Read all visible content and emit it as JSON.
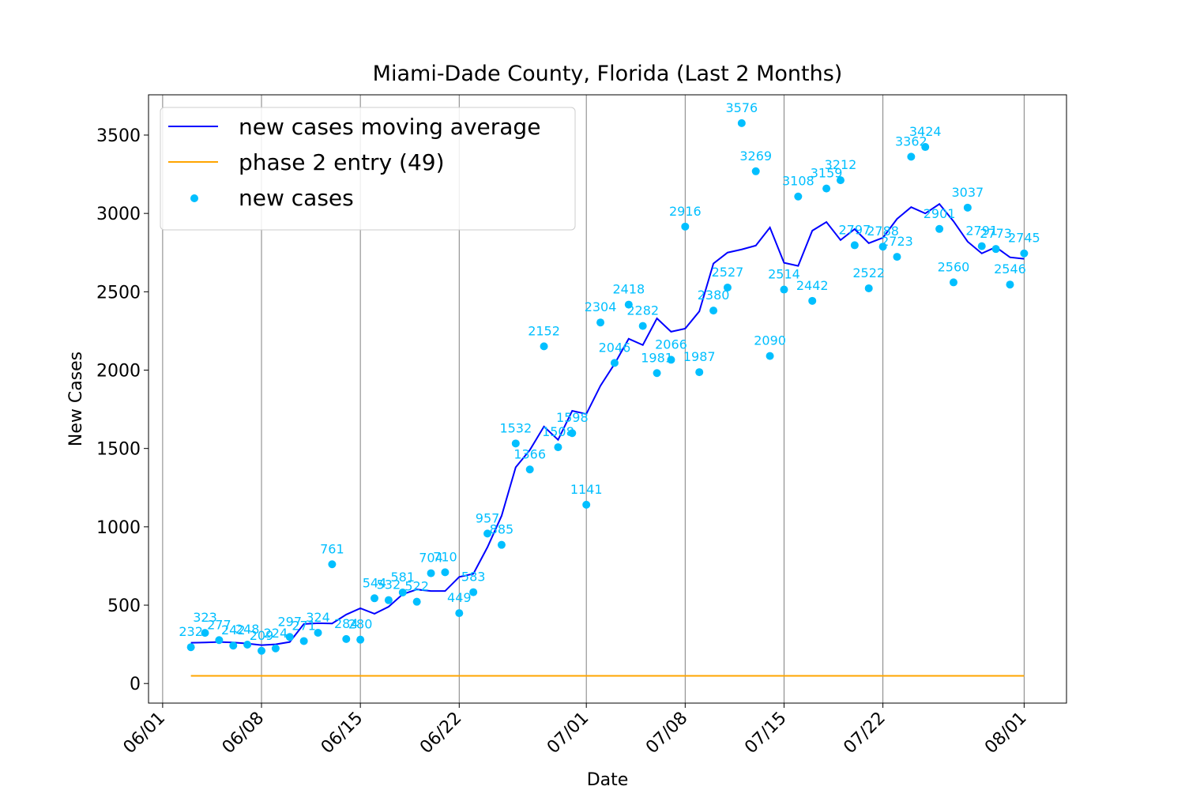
{
  "chart_data": {
    "type": "line",
    "title": "Miami-Dade County, Florida (Last 2 Months)",
    "x_label": "Date",
    "y_label": "New Cases",
    "x": [
      "06/03",
      "06/04",
      "06/05",
      "06/06",
      "06/07",
      "06/08",
      "06/09",
      "06/10",
      "06/11",
      "06/12",
      "06/13",
      "06/14",
      "06/15",
      "06/16",
      "06/17",
      "06/18",
      "06/19",
      "06/20",
      "06/21",
      "06/22",
      "06/23",
      "06/24",
      "06/25",
      "06/26",
      "06/27",
      "06/28",
      "06/29",
      "06/30",
      "07/01",
      "07/02",
      "07/03",
      "07/04",
      "07/05",
      "07/06",
      "07/07",
      "07/08",
      "07/09",
      "07/10",
      "07/11",
      "07/12",
      "07/13",
      "07/14",
      "07/15",
      "07/16",
      "07/17",
      "07/18",
      "07/19",
      "07/20",
      "07/21",
      "07/22",
      "07/23",
      "07/24",
      "07/25",
      "07/26",
      "07/27",
      "07/28",
      "07/29",
      "07/30",
      "07/31",
      "08/01"
    ],
    "series": [
      {
        "name": "new cases moving average",
        "type": "line",
        "color": "#0000ff",
        "values": [
          260,
          262,
          265,
          262,
          255,
          245,
          250,
          265,
          380,
          385,
          383,
          440,
          480,
          445,
          490,
          570,
          600,
          590,
          590,
          680,
          700,
          870,
          1070,
          1380,
          1490,
          1640,
          1555,
          1740,
          1720,
          1900,
          2040,
          2200,
          2160,
          2330,
          2245,
          2265,
          2375,
          2680,
          2750,
          2770,
          2795,
          2910,
          2685,
          2665,
          2890,
          2945,
          2830,
          2900,
          2810,
          2845,
          2965,
          3040,
          3000,
          3060,
          2950,
          2820,
          2745,
          2785,
          2720,
          2710
        ]
      },
      {
        "name": "phase 2 entry (49)",
        "type": "line",
        "color": "#ffa500",
        "values": [
          49,
          49,
          49,
          49,
          49,
          49,
          49,
          49,
          49,
          49,
          49,
          49,
          49,
          49,
          49,
          49,
          49,
          49,
          49,
          49,
          49,
          49,
          49,
          49,
          49,
          49,
          49,
          49,
          49,
          49,
          49,
          49,
          49,
          49,
          49,
          49,
          49,
          49,
          49,
          49,
          49,
          49,
          49,
          49,
          49,
          49,
          49,
          49,
          49,
          49,
          49,
          49,
          49,
          49,
          49,
          49,
          49,
          49,
          49,
          49
        ]
      },
      {
        "name": "new cases",
        "type": "scatter",
        "color": "#00bfff",
        "data_labels": true,
        "values": [
          232,
          323,
          277,
          242,
          248,
          209,
          224,
          297,
          271,
          324,
          761,
          284,
          280,
          544,
          532,
          581,
          522,
          704,
          710,
          449,
          583,
          957,
          885,
          1532,
          1366,
          2152,
          1508,
          1598,
          1141,
          2304,
          2046,
          2418,
          2282,
          1981,
          2066,
          2916,
          1987,
          2380,
          2527,
          3576,
          3269,
          2090,
          2514,
          3108,
          2442,
          3159,
          3212,
          2797,
          2522,
          2788,
          2723,
          3362,
          3424,
          2901,
          2560,
          3037,
          2791,
          2773,
          2546,
          2745
        ]
      }
    ],
    "xlim": [
      "05/31",
      "08/04"
    ],
    "xticks": [
      "06/01",
      "06/08",
      "06/15",
      "06/22",
      "07/01",
      "07/08",
      "07/15",
      "07/22",
      "08/01"
    ],
    "ylim": [
      -125,
      3757
    ],
    "yticks": [
      0,
      500,
      1000,
      1500,
      2000,
      2500,
      3000,
      3500
    ],
    "grid": "x",
    "legend": "upper left"
  }
}
